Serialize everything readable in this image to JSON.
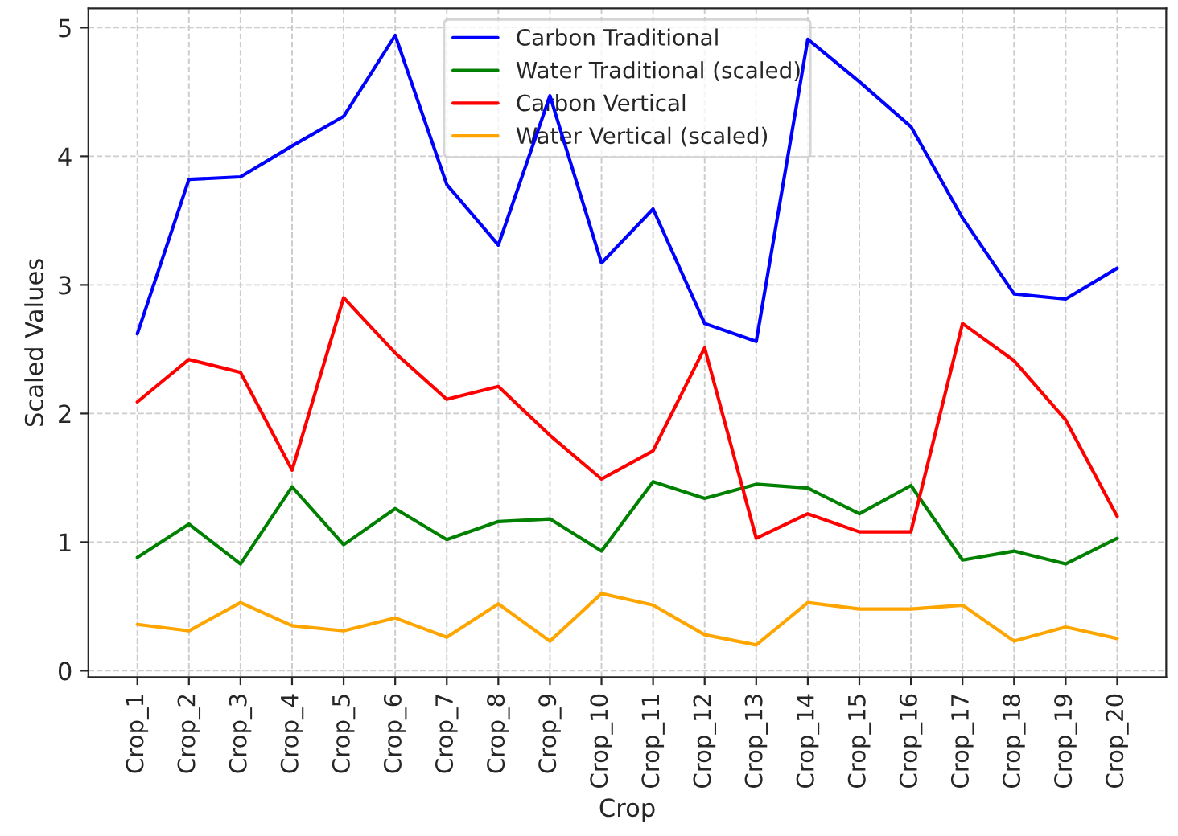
{
  "chart_data": {
    "type": "line",
    "xlabel": "Crop",
    "ylabel": "Scaled Values",
    "categories": [
      "Crop_1",
      "Crop_2",
      "Crop_3",
      "Crop_4",
      "Crop_5",
      "Crop_6",
      "Crop_7",
      "Crop_8",
      "Crop_9",
      "Crop_10",
      "Crop_11",
      "Crop_12",
      "Crop_13",
      "Crop_14",
      "Crop_15",
      "Crop_16",
      "Crop_17",
      "Crop_18",
      "Crop_19",
      "Crop_20"
    ],
    "series": [
      {
        "name": "Carbon Traditional",
        "color": "#0000ff",
        "values": [
          2.62,
          3.82,
          3.84,
          4.08,
          4.31,
          4.94,
          3.78,
          3.31,
          4.47,
          3.17,
          3.59,
          2.7,
          2.56,
          4.91,
          4.58,
          4.23,
          3.52,
          2.93,
          2.89,
          3.13
        ]
      },
      {
        "name": "Water Traditional (scaled)",
        "color": "#008000",
        "values": [
          0.88,
          1.14,
          0.83,
          1.43,
          0.98,
          1.26,
          1.02,
          1.16,
          1.18,
          0.93,
          1.47,
          1.34,
          1.45,
          1.42,
          1.22,
          1.44,
          0.86,
          0.93,
          0.83,
          1.03
        ]
      },
      {
        "name": "Carbon Vertical",
        "color": "#ff0000",
        "values": [
          2.09,
          2.42,
          2.32,
          1.56,
          2.9,
          2.47,
          2.11,
          2.21,
          1.83,
          1.49,
          1.71,
          2.51,
          1.03,
          1.22,
          1.08,
          1.08,
          2.7,
          2.41,
          1.95,
          1.2
        ]
      },
      {
        "name": "Water Vertical (scaled)",
        "color": "#ffa500",
        "values": [
          0.36,
          0.31,
          0.53,
          0.35,
          0.31,
          0.41,
          0.26,
          0.52,
          0.23,
          0.6,
          0.51,
          0.28,
          0.2,
          0.53,
          0.48,
          0.48,
          0.51,
          0.23,
          0.34,
          0.25
        ]
      }
    ],
    "ylim": [
      -0.05,
      5.15
    ],
    "yticks": [
      0,
      1,
      2,
      3,
      4,
      5
    ],
    "grid": true,
    "legend": "top",
    "marker": "none",
    "line_style": "solid"
  }
}
